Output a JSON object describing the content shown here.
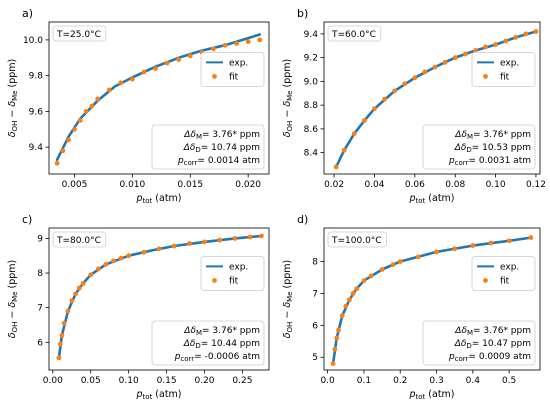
{
  "colors": {
    "exp": "#1f77b4",
    "fit": "#ff7f0e"
  },
  "chart_data": [
    {
      "type": "scatter",
      "panel_label": "a)",
      "temperature": "T=25.0°C",
      "legend": {
        "placement": "center-right",
        "entries": [
          "exp.",
          "fit"
        ]
      },
      "xlim": [
        0.0028,
        0.0218
      ],
      "ylim": [
        9.25,
        10.1
      ],
      "xticks": [
        0.005,
        0.01,
        0.015,
        0.02
      ],
      "xtick_labels": [
        "0.005",
        "0.010",
        "0.015",
        "0.020"
      ],
      "yticks": [
        9.4,
        9.6,
        9.8,
        10.0
      ],
      "ytick_labels": [
        "9.4",
        "9.6",
        "9.8",
        "10.0"
      ],
      "series": [
        {
          "name": "exp.",
          "x": [
            0.0035,
            0.0045,
            0.0055,
            0.007,
            0.0085,
            0.01,
            0.012,
            0.014,
            0.016,
            0.018,
            0.02,
            0.021
          ],
          "y": [
            9.33,
            9.46,
            9.56,
            9.66,
            9.74,
            9.79,
            9.85,
            9.9,
            9.94,
            9.97,
            10.01,
            10.03
          ]
        },
        {
          "name": "fit",
          "x": [
            0.0035,
            0.004,
            0.0045,
            0.005,
            0.0055,
            0.006,
            0.0065,
            0.007,
            0.008,
            0.009,
            0.01,
            0.011,
            0.012,
            0.013,
            0.014,
            0.015,
            0.016,
            0.017,
            0.018,
            0.019,
            0.02,
            0.021
          ],
          "y": [
            9.31,
            9.38,
            9.44,
            9.5,
            9.55,
            9.6,
            9.63,
            9.67,
            9.72,
            9.76,
            9.78,
            9.82,
            9.84,
            9.87,
            9.89,
            9.91,
            9.93,
            9.95,
            9.97,
            9.98,
            9.99,
            10.0
          ]
        }
      ],
      "params": {
        "line1": "Δδ",
        "line1_sub": "M",
        "line1_val": "= 3.76* ppm",
        "line2": "Δδ",
        "line2_sub": "D",
        "line2_val": "= 10.74 ppm",
        "line3": "p",
        "line3_sub": "corr",
        "line3_val": "= 0.0014 atm"
      }
    },
    {
      "type": "scatter",
      "panel_label": "b)",
      "temperature": "T=60.0°C",
      "legend": {
        "placement": "center-right",
        "entries": [
          "exp.",
          "fit"
        ]
      },
      "xlim": [
        0.015,
        0.122
      ],
      "ylim": [
        8.22,
        9.5
      ],
      "xticks": [
        0.02,
        0.04,
        0.06,
        0.08,
        0.1,
        0.12
      ],
      "xtick_labels": [
        "0.02",
        "0.04",
        "0.06",
        "0.08",
        "0.10",
        "0.12"
      ],
      "yticks": [
        8.4,
        8.6,
        8.8,
        9.0,
        9.2,
        9.4
      ],
      "ytick_labels": [
        "8.4",
        "8.6",
        "8.8",
        "9.0",
        "9.2",
        "9.4"
      ],
      "series": [
        {
          "name": "exp.",
          "x": [
            0.021,
            0.025,
            0.03,
            0.035,
            0.04,
            0.05,
            0.06,
            0.07,
            0.08,
            0.09,
            0.1,
            0.11,
            0.12
          ],
          "y": [
            8.28,
            8.42,
            8.56,
            8.67,
            8.77,
            8.92,
            9.03,
            9.12,
            9.2,
            9.26,
            9.31,
            9.37,
            9.42
          ]
        },
        {
          "name": "fit",
          "x": [
            0.021,
            0.025,
            0.03,
            0.035,
            0.04,
            0.045,
            0.05,
            0.055,
            0.06,
            0.065,
            0.07,
            0.075,
            0.08,
            0.085,
            0.09,
            0.095,
            0.1,
            0.105,
            0.11,
            0.115,
            0.12
          ],
          "y": [
            8.28,
            8.42,
            8.56,
            8.67,
            8.77,
            8.85,
            8.92,
            8.98,
            9.03,
            9.08,
            9.12,
            9.16,
            9.2,
            9.23,
            9.26,
            9.29,
            9.31,
            9.34,
            9.37,
            9.4,
            9.42
          ]
        }
      ],
      "params": {
        "line1": "Δδ",
        "line1_sub": "M",
        "line1_val": "= 3.76* ppm",
        "line2": "Δδ",
        "line2_sub": "D",
        "line2_val": "= 10.53 ppm",
        "line3": "p",
        "line3_sub": "corr",
        "line3_val": "= 0.0031 atm"
      }
    },
    {
      "type": "scatter",
      "panel_label": "c)",
      "temperature": "T=80.0°C",
      "legend": {
        "placement": "center-right",
        "entries": [
          "exp.",
          "fit"
        ]
      },
      "xlim": [
        -0.005,
        0.285
      ],
      "ylim": [
        5.2,
        9.3
      ],
      "xticks": [
        0.0,
        0.05,
        0.1,
        0.15,
        0.2,
        0.25
      ],
      "xtick_labels": [
        "0.00",
        "0.05",
        "0.10",
        "0.15",
        "0.20",
        "0.25"
      ],
      "yticks": [
        6,
        7,
        8,
        9
      ],
      "ytick_labels": [
        "6",
        "7",
        "8",
        "9"
      ],
      "series": [
        {
          "name": "exp.",
          "x": [
            0.008,
            0.012,
            0.02,
            0.03,
            0.04,
            0.05,
            0.07,
            0.1,
            0.13,
            0.16,
            0.2,
            0.24,
            0.275
          ],
          "y": [
            5.55,
            6.2,
            6.9,
            7.4,
            7.7,
            7.95,
            8.25,
            8.5,
            8.65,
            8.78,
            8.9,
            9.0,
            9.07
          ]
        },
        {
          "name": "fit",
          "x": [
            0.008,
            0.01,
            0.012,
            0.015,
            0.02,
            0.025,
            0.03,
            0.035,
            0.04,
            0.05,
            0.06,
            0.07,
            0.08,
            0.09,
            0.1,
            0.12,
            0.14,
            0.16,
            0.18,
            0.2,
            0.22,
            0.24,
            0.26,
            0.275
          ],
          "y": [
            5.55,
            5.95,
            6.2,
            6.55,
            6.9,
            7.2,
            7.4,
            7.57,
            7.7,
            7.95,
            8.12,
            8.25,
            8.35,
            8.43,
            8.5,
            8.6,
            8.7,
            8.78,
            8.85,
            8.9,
            8.95,
            9.0,
            9.04,
            9.07
          ]
        }
      ],
      "params": {
        "line1": "Δδ",
        "line1_sub": "M",
        "line1_val": "= 3.76* ppm",
        "line2": "Δδ",
        "line2_sub": "D",
        "line2_val": "= 10.44 ppm",
        "line3": "p",
        "line3_sub": "corr",
        "line3_val": "= -0.0006 atm"
      }
    },
    {
      "type": "scatter",
      "panel_label": "d)",
      "temperature": "T=100.0°C",
      "legend": {
        "placement": "center-right",
        "entries": [
          "exp.",
          "fit"
        ]
      },
      "xlim": [
        -0.01,
        0.585
      ],
      "ylim": [
        4.6,
        9.05
      ],
      "xticks": [
        0.0,
        0.1,
        0.2,
        0.3,
        0.4,
        0.5
      ],
      "xtick_labels": [
        "0.0",
        "0.1",
        "0.2",
        "0.3",
        "0.4",
        "0.5"
      ],
      "yticks": [
        5,
        6,
        7,
        8
      ],
      "ytick_labels": [
        "5",
        "6",
        "7",
        "8"
      ],
      "series": [
        {
          "name": "exp.",
          "x": [
            0.015,
            0.025,
            0.04,
            0.06,
            0.08,
            0.1,
            0.15,
            0.2,
            0.25,
            0.3,
            0.4,
            0.5,
            0.56
          ],
          "y": [
            4.8,
            5.6,
            6.3,
            6.8,
            7.15,
            7.4,
            7.75,
            8.0,
            8.15,
            8.3,
            8.5,
            8.65,
            8.75
          ]
        },
        {
          "name": "fit",
          "x": [
            0.015,
            0.02,
            0.025,
            0.03,
            0.04,
            0.05,
            0.06,
            0.07,
            0.08,
            0.1,
            0.12,
            0.15,
            0.18,
            0.2,
            0.25,
            0.3,
            0.35,
            0.4,
            0.45,
            0.5,
            0.56
          ],
          "y": [
            4.8,
            5.25,
            5.6,
            5.85,
            6.3,
            6.6,
            6.8,
            7.0,
            7.15,
            7.4,
            7.55,
            7.75,
            7.9,
            8.0,
            8.15,
            8.3,
            8.4,
            8.5,
            8.58,
            8.65,
            8.75
          ]
        }
      ],
      "params": {
        "line1": "Δδ",
        "line1_sub": "M",
        "line1_val": "= 3.76* ppm",
        "line2": "Δδ",
        "line2_sub": "D",
        "line2_val": "= 10.47 ppm",
        "line3": "p",
        "line3_sub": "corr",
        "line3_val": "= 0.0009 atm"
      }
    }
  ],
  "axis_text": {
    "xlabel_main": "p",
    "xlabel_sub": "tot",
    "xlabel_unit": " (atm)",
    "ylabel_a": "δ",
    "ylabel_a_sub": "OH",
    "ylabel_mid": " − δ",
    "ylabel_b_sub": "Me",
    "ylabel_unit": " (ppm)"
  }
}
